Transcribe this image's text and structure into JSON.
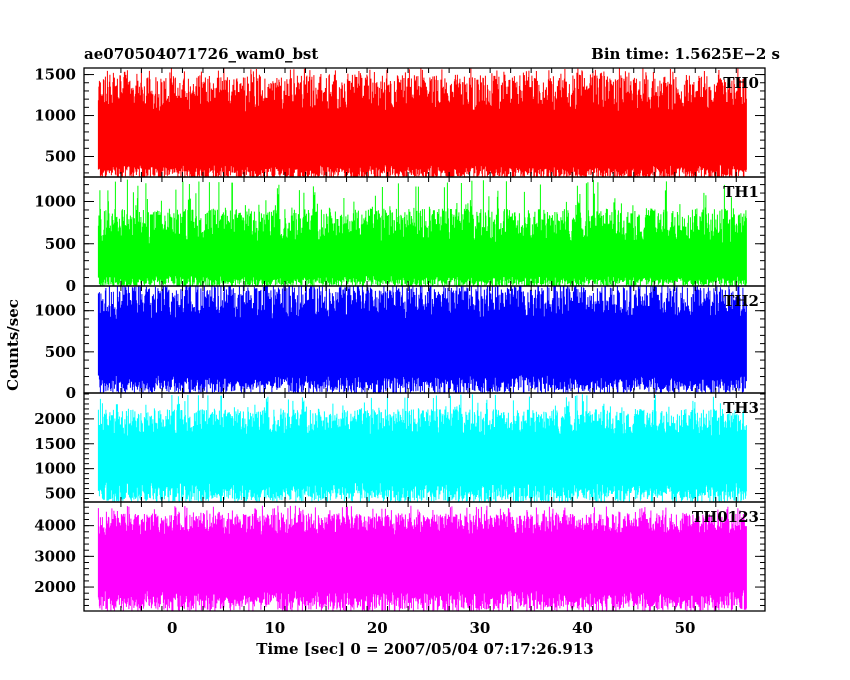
{
  "chart_data": {
    "type": "line",
    "title_left": "ae070504071726_wam0_bst",
    "title_right": "Bin time: 1.5625E−2 s",
    "xlabel": "Time [sec] 0 = 2007/05/04 07:17:26.913",
    "ylabel": "Counts/sec",
    "xlim": [
      -8.6,
      57.8
    ],
    "x_ticks": [
      0,
      10,
      20,
      30,
      40,
      50
    ],
    "x_tick_labels": [
      "0",
      "10",
      "20",
      "30",
      "40",
      "50"
    ],
    "data_x_range": [
      -7.2,
      56.0
    ],
    "bin_time": 0.015625,
    "grid": false,
    "panels": [
      {
        "name": "TH0",
        "color": "#ff0000",
        "ylim": [
          250,
          1580
        ],
        "y_ticks": [
          500,
          1000,
          1500
        ],
        "y_tick_labels": [
          "500",
          "1000",
          "1500"
        ],
        "band_low": [
          230,
          400
        ],
        "band_high": [
          1050,
          1500
        ],
        "spike_max": 1580
      },
      {
        "name": "TH1",
        "color": "#00ff00",
        "ylim": [
          0,
          1290
        ],
        "y_ticks": [
          0,
          500,
          1000
        ],
        "y_tick_labels": [
          "0",
          "500",
          "1000"
        ],
        "band_low": [
          0,
          120
        ],
        "band_high": [
          500,
          920
        ],
        "spike_max": 1260
      },
      {
        "name": "TH2",
        "color": "#0000ff",
        "ylim": [
          0,
          1300
        ],
        "y_ticks": [
          0,
          500,
          1000
        ],
        "y_tick_labels": [
          "0",
          "500",
          "1000"
        ],
        "band_low": [
          0,
          220
        ],
        "band_high": [
          900,
          1300
        ],
        "spike_max": 1300
      },
      {
        "name": "TH3",
        "color": "#00ffff",
        "ylim": [
          330,
          2520
        ],
        "y_ticks": [
          500,
          1000,
          1500,
          2000
        ],
        "y_tick_labels": [
          "500",
          "1000",
          "1500",
          "2000"
        ],
        "band_low": [
          340,
          720
        ],
        "band_high": [
          1650,
          2200
        ],
        "spike_max": 2500
      },
      {
        "name": "TH0123",
        "color": "#ff00ff",
        "ylim": [
          1220,
          4770
        ],
        "y_ticks": [
          2000,
          3000,
          4000
        ],
        "y_tick_labels": [
          "2000",
          "3000",
          "4000"
        ],
        "band_low": [
          1230,
          1900
        ],
        "band_high": [
          3700,
          4400
        ],
        "spike_max": 4650
      }
    ]
  }
}
